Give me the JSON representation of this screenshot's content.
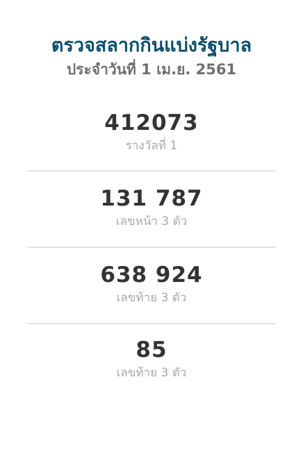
{
  "header": {
    "title": "ตรวจสลากกินแบ่งรัฐบาล",
    "subtitle": "ประจำวันที่ 1 เม.ย. 2561"
  },
  "prizes": [
    {
      "number": "412073",
      "label": "รางวัลที่ 1"
    },
    {
      "number": "131 787",
      "label": "เลขหน้า 3 ตัว"
    },
    {
      "number": "638 924",
      "label": "เลขท้าย 3 ตัว"
    },
    {
      "number": "85",
      "label": "เลขท้าย 3 ตัว"
    }
  ]
}
